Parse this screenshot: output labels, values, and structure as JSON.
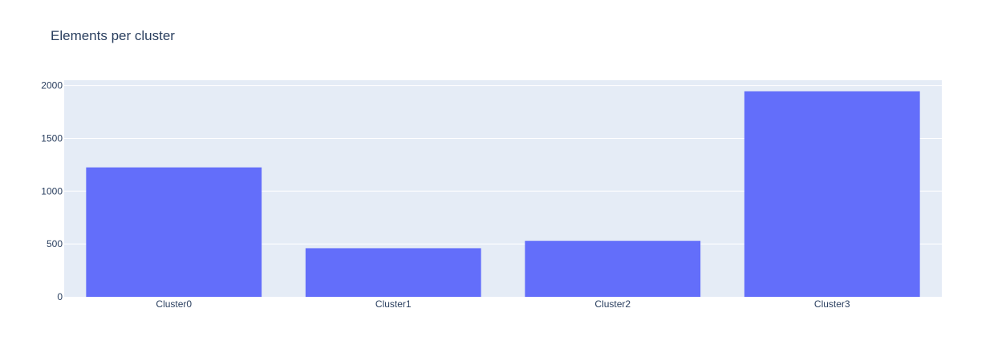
{
  "chart_data": {
    "type": "bar",
    "title": "Elements per cluster",
    "xlabel": "",
    "ylabel": "",
    "categories": [
      "Cluster0",
      "Cluster1",
      "Cluster2",
      "Cluster3"
    ],
    "values": [
      1225,
      460,
      530,
      1945
    ],
    "ylim": [
      0,
      2050
    ],
    "yticks": [
      0,
      500,
      1000,
      1500,
      2000
    ],
    "grid": true,
    "legend": "none",
    "colors": {
      "bar": "#636efa",
      "plot_background": "#e5ecf6",
      "grid": "#ffffff",
      "text": "#2a3f5f"
    }
  }
}
